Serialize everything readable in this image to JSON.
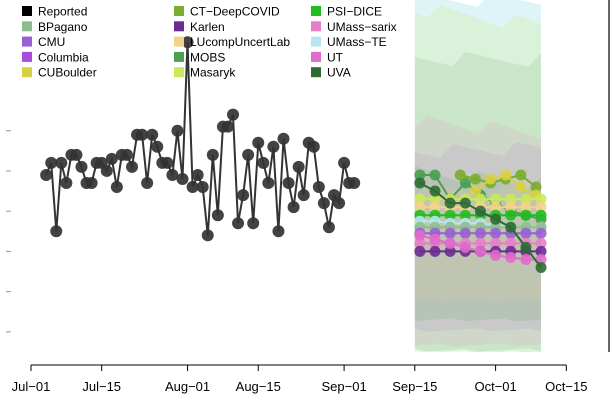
{
  "chart_data": {
    "type": "line",
    "title": "",
    "xlabel": "",
    "ylabel": "",
    "x_ticks": [
      {
        "label": "Jul−01",
        "day": 0
      },
      {
        "label": "Jul−15",
        "day": 14
      },
      {
        "label": "Aug−01",
        "day": 31
      },
      {
        "label": "Aug−15",
        "day": 45
      },
      {
        "label": "Sep−01",
        "day": 62
      },
      {
        "label": "Sep−15",
        "day": 76
      },
      {
        "label": "Oct−01",
        "day": 92
      },
      {
        "label": "Oct−15",
        "day": 106
      }
    ],
    "legend": [
      {
        "name": "Reported",
        "color": "#000000"
      },
      {
        "name": "BPagano",
        "color": "#8fbc8f"
      },
      {
        "name": "CMU",
        "color": "#9a5fd4"
      },
      {
        "name": "Columbia",
        "color": "#a64ddb"
      },
      {
        "name": "CUBoulder",
        "color": "#d8d044"
      },
      {
        "name": "CT−DeepCOVID",
        "color": "#7aad2c"
      },
      {
        "name": "Karlen",
        "color": "#6a2c91"
      },
      {
        "name": "LUcompUncertLab",
        "color": "#f4d18c"
      },
      {
        "name": "MOBS",
        "color": "#4aa050"
      },
      {
        "name": "Masaryk",
        "color": "#cbe85b"
      },
      {
        "name": "PSI−DICE",
        "color": "#22bb22"
      },
      {
        "name": "UMass−sarix",
        "color": "#e77ec8"
      },
      {
        "name": "UMass−TE",
        "color": "#b7e6ee"
      },
      {
        "name": "UT",
        "color": "#e06ccc"
      },
      {
        "name": "UVA",
        "color": "#2e6b33"
      }
    ],
    "reported_series": {
      "name": "Reported",
      "x_days": [
        3,
        4,
        5,
        6,
        7,
        8,
        9,
        10,
        11,
        12,
        13,
        14,
        15,
        16,
        17,
        18,
        19,
        20,
        21,
        22,
        23,
        24,
        25,
        26,
        27,
        28,
        29,
        30,
        31,
        32,
        33,
        34,
        35,
        36,
        37,
        38,
        39,
        40,
        41,
        42,
        43,
        44,
        45,
        46,
        47,
        48,
        49,
        50,
        51,
        52,
        53,
        54,
        55,
        56,
        57,
        58,
        59,
        60,
        61,
        62,
        63,
        64
      ],
      "y": [
        5.9,
        6.2,
        4.5,
        6.2,
        5.7,
        6.4,
        6.4,
        6.1,
        5.7,
        5.7,
        6.2,
        6.2,
        6.0,
        6.3,
        5.6,
        6.4,
        6.4,
        6.1,
        6.9,
        6.9,
        5.7,
        6.9,
        6.6,
        6.2,
        6.2,
        5.9,
        7.0,
        5.8,
        9.2,
        5.6,
        5.9,
        5.6,
        4.4,
        6.4,
        4.9,
        7.1,
        7.1,
        7.4,
        4.7,
        5.4,
        6.4,
        4.7,
        6.7,
        6.2,
        5.7,
        6.6,
        4.5,
        6.8,
        5.7,
        5.1,
        6.1,
        5.4,
        6.7,
        6.6,
        5.6,
        5.2,
        4.6,
        5.4,
        5.2,
        6.2,
        5.7,
        5.7
      ]
    },
    "forecast_lines": [
      {
        "model": "MOBS",
        "color": "#4aa050",
        "x_days": [
          77,
          80,
          83,
          86,
          89,
          92,
          95,
          98,
          101
        ],
        "y": [
          5.9,
          5.9,
          5.3,
          5.7,
          5.4,
          5.2,
          5.0,
          4.9,
          4.8
        ]
      },
      {
        "model": "CT−DeepCOVID",
        "color": "#7aad2c",
        "x_days": [
          85,
          88,
          91,
          94,
          97,
          100
        ],
        "y": [
          5.9,
          5.8,
          5.7,
          5.8,
          5.9,
          5.6
        ]
      },
      {
        "model": "CUBoulder",
        "color": "#d8d044",
        "x_days": [
          88,
          91,
          94,
          97,
          100
        ],
        "y": [
          5.5,
          5.8,
          5.9,
          5.6,
          5.4
        ]
      },
      {
        "model": "Masaryk",
        "color": "#cbe85b",
        "x_days": [
          77,
          80,
          83,
          86,
          89,
          92,
          95,
          98,
          101
        ],
        "y": [
          5.3,
          5.3,
          5.3,
          5.3,
          5.3,
          5.3,
          5.3,
          5.3,
          5.3
        ]
      },
      {
        "model": "LUcompUncertLab",
        "color": "#f4d18c",
        "x_days": [
          77,
          80,
          83,
          86,
          89,
          92,
          95,
          98,
          101
        ],
        "y": [
          5.1,
          5.1,
          5.1,
          5.1,
          5.1,
          5.1,
          5.1,
          5.1,
          5.1
        ]
      },
      {
        "model": "PSI−DICE",
        "color": "#22bb22",
        "x_days": [
          77,
          80,
          83,
          86,
          89,
          92,
          95,
          98,
          101
        ],
        "y": [
          4.9,
          4.9,
          4.9,
          4.9,
          4.9,
          4.9,
          4.9,
          4.9,
          4.9
        ]
      },
      {
        "model": "UMass−TE",
        "color": "#b7e6ee",
        "x_days": [
          77,
          80,
          83,
          86,
          89,
          92,
          95,
          98,
          101
        ],
        "y": [
          4.75,
          4.75,
          4.7,
          4.7,
          4.7,
          4.65,
          4.6,
          4.6,
          4.6
        ]
      },
      {
        "model": "BPagano",
        "color": "#8fbc8f",
        "x_days": [
          77,
          80,
          83,
          86,
          89,
          92,
          95,
          98,
          101
        ],
        "y": [
          4.6,
          4.6,
          4.6,
          4.6,
          4.6,
          4.6,
          4.6,
          4.6,
          4.6
        ]
      },
      {
        "model": "CMU",
        "color": "#9a5fd4",
        "x_days": [
          77,
          80,
          83,
          86,
          89,
          92,
          95,
          98,
          101
        ],
        "y": [
          4.45,
          4.45,
          4.45,
          4.45,
          4.45,
          4.45,
          4.45,
          4.45,
          4.45
        ]
      },
      {
        "model": "UMass−sarix",
        "color": "#e77ec8",
        "x_days": [
          77,
          80,
          83,
          86,
          89,
          92,
          95,
          98,
          101
        ],
        "y": [
          4.2,
          4.2,
          4.2,
          4.2,
          4.2,
          4.2,
          4.2,
          4.2,
          4.2
        ]
      },
      {
        "model": "Karlen",
        "color": "#6a2c91",
        "x_days": [
          77,
          80,
          83,
          86,
          89,
          92,
          95,
          98,
          101
        ],
        "y": [
          4.0,
          4.0,
          4.0,
          4.0,
          4.0,
          4.0,
          4.0,
          4.0,
          4.0
        ]
      },
      {
        "model": "UT",
        "color": "#e06ccc",
        "x_days": [
          77,
          80,
          83,
          86,
          89,
          92,
          95,
          98,
          101
        ],
        "y": [
          4.4,
          4.3,
          4.2,
          4.1,
          4.0,
          3.9,
          3.85,
          3.8,
          3.8
        ]
      },
      {
        "model": "UVA",
        "color": "#2e6b33",
        "x_days": [
          77,
          80,
          83,
          86,
          89,
          92,
          95,
          98,
          101
        ],
        "y": [
          5.7,
          5.5,
          5.2,
          5.2,
          5.0,
          4.8,
          4.6,
          4.1,
          3.6
        ]
      }
    ],
    "ylim": [
      1.5,
      10
    ],
    "xlim": [
      -3,
      107
    ],
    "forecast_band_x_days": [
      76,
      101
    ],
    "grid": false,
    "legend_position": "top-left"
  }
}
